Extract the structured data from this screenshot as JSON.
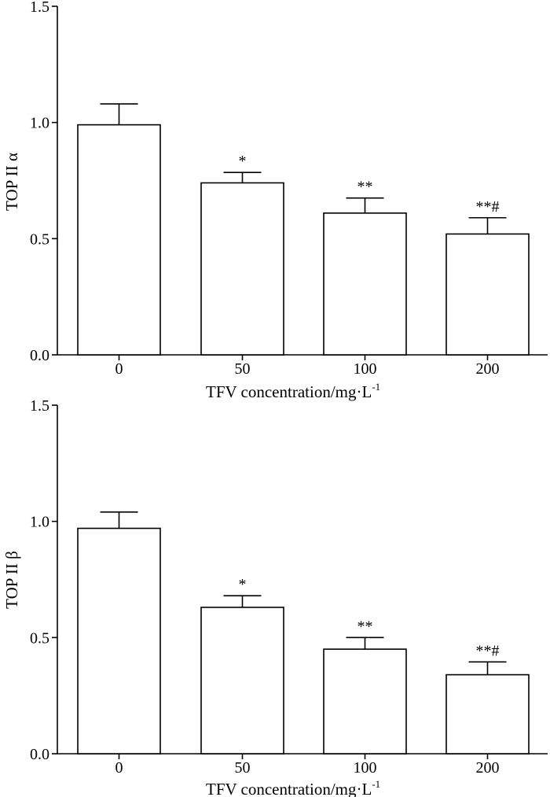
{
  "chart_data": [
    {
      "type": "bar",
      "categories": [
        "0",
        "50",
        "100",
        "200"
      ],
      "values": [
        0.99,
        0.74,
        0.61,
        0.52
      ],
      "errors": [
        0.09,
        0.045,
        0.065,
        0.07
      ],
      "annotations": [
        "",
        "*",
        "**",
        "**#"
      ],
      "ylabel": "TOP II α",
      "xlabel": "TFV concentration/mg·L",
      "xlabel_sup": "-1",
      "ylim": [
        0,
        1.5
      ],
      "yticks": [
        "0.0",
        "0.5",
        "1.0",
        "1.5"
      ],
      "grid": false
    },
    {
      "type": "bar",
      "categories": [
        "0",
        "50",
        "100",
        "200"
      ],
      "values": [
        0.97,
        0.63,
        0.45,
        0.34
      ],
      "errors": [
        0.07,
        0.05,
        0.05,
        0.055
      ],
      "annotations": [
        "",
        "*",
        "**",
        "**#"
      ],
      "ylabel": "TOP II β",
      "xlabel": "TFV concentration/mg·L",
      "xlabel_sup": "-1",
      "ylim": [
        0,
        1.5
      ],
      "yticks": [
        "0.0",
        "0.5",
        "1.0",
        "1.5"
      ],
      "grid": false
    }
  ]
}
